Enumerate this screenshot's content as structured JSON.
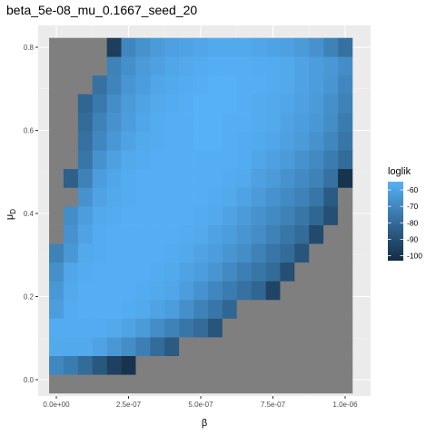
{
  "chart_data": {
    "type": "heatmap",
    "title": "beta_5e-08_mu_0.1667_seed_20",
    "xlabel": "β",
    "ylabel": "μ_D",
    "ylabel_main": "μ",
    "ylabel_sub": "D",
    "x_ticks": [
      {
        "value": 0,
        "label": "0.0e+00"
      },
      {
        "value": 2.5e-07,
        "label": "2.5e-07"
      },
      {
        "value": 5e-07,
        "label": "5.0e-07"
      },
      {
        "value": 7.5e-07,
        "label": "7.5e-07"
      },
      {
        "value": 1e-06,
        "label": "1.0e-06"
      }
    ],
    "y_ticks": [
      {
        "value": 0.0,
        "label": "0.0"
      },
      {
        "value": 0.2,
        "label": "0.2"
      },
      {
        "value": 0.4,
        "label": "0.4"
      },
      {
        "value": 0.6,
        "label": "0.6"
      },
      {
        "value": 0.8,
        "label": "0.8"
      }
    ],
    "x_step": 5e-08,
    "y_step": 0.045,
    "x_values": [
      0,
      5e-08,
      1e-07,
      1.5e-07,
      2e-07,
      2.5e-07,
      3e-07,
      3.5e-07,
      4e-07,
      4.5e-07,
      5e-07,
      5.5e-07,
      6e-07,
      6.5e-07,
      7e-07,
      7.5e-07,
      8e-07,
      8.5e-07,
      9e-07,
      9.5e-07,
      1e-06
    ],
    "y_values": [
      -0.01,
      0.035,
      0.08,
      0.125,
      0.17,
      0.215,
      0.26,
      0.305,
      0.35,
      0.395,
      0.44,
      0.485,
      0.53,
      0.575,
      0.62,
      0.665,
      0.71,
      0.755,
      0.8
    ],
    "legend": {
      "title": "loglik",
      "breaks": [
        {
          "value": -60,
          "label": "-60"
        },
        {
          "value": -70,
          "label": "-70"
        },
        {
          "value": -80,
          "label": "-80"
        },
        {
          "value": -90,
          "label": "-90"
        },
        {
          "value": -100,
          "label": "-100"
        }
      ],
      "min": -103,
      "max": -55,
      "low_color": "#132b43",
      "high_color": "#56b1f7",
      "na_color": "#7f7f7f",
      "position": "right"
    },
    "panel_background": "#ebebeb",
    "grid": true,
    "rows_note": "rows ordered from bottom (y=-0.01) to top (y=0.80); null = no value (grey)",
    "z": [
      [
        null,
        null,
        null,
        null,
        null,
        null,
        null,
        null,
        null,
        null,
        null,
        null,
        null,
        null,
        null,
        null,
        null,
        null,
        null,
        null,
        null
      ],
      [
        -70,
        -74,
        -80,
        -87,
        -95,
        -100,
        null,
        null,
        null,
        null,
        null,
        null,
        null,
        null,
        null,
        null,
        null,
        null,
        null,
        null,
        null
      ],
      [
        -58,
        -58,
        -58,
        -60,
        -64,
        -68,
        -73,
        -80,
        -86,
        null,
        null,
        null,
        null,
        null,
        null,
        null,
        null,
        null,
        null,
        null,
        null
      ],
      [
        -57,
        -57,
        -57,
        -57,
        -58,
        -60,
        -63,
        -68,
        -72,
        -76,
        -80,
        -88,
        null,
        null,
        null,
        null,
        null,
        null,
        null,
        null,
        null
      ],
      [
        -62,
        -57,
        -56,
        -56,
        -56,
        -57,
        -58,
        -60,
        -62,
        -67,
        -72,
        -76,
        -82,
        null,
        null,
        null,
        null,
        null,
        null,
        null,
        null
      ],
      [
        -64,
        -58,
        -56,
        -56,
        -56,
        -56,
        -57,
        -58,
        -59,
        -62,
        -66,
        -70,
        -74,
        -78,
        -82,
        -94,
        null,
        null,
        null,
        null,
        null
      ],
      [
        -67,
        -59,
        -57,
        -56,
        -56,
        -56,
        -56,
        -57,
        -58,
        -60,
        -62,
        -65,
        -69,
        -73,
        -76,
        -80,
        -90,
        null,
        null,
        null,
        null
      ],
      [
        -72,
        -64,
        -58,
        -57,
        -56,
        -56,
        -56,
        -56,
        -57,
        -58,
        -60,
        -62,
        -65,
        -68,
        -72,
        -76,
        -80,
        -88,
        null,
        null,
        null
      ],
      [
        null,
        -66,
        -60,
        -57,
        -56,
        -56,
        -56,
        -56,
        -56,
        -57,
        -58,
        -60,
        -62,
        -65,
        -68,
        -72,
        -76,
        -80,
        -92,
        null,
        null
      ],
      [
        null,
        -68,
        -62,
        -58,
        -57,
        -56,
        -56,
        -56,
        -56,
        -56,
        -57,
        -58,
        -60,
        -63,
        -66,
        -69,
        -72,
        -76,
        -82,
        -90,
        null
      ],
      [
        null,
        null,
        -66,
        -60,
        -58,
        -57,
        -56,
        -56,
        -56,
        -56,
        -56,
        -57,
        -58,
        -60,
        -63,
        -66,
        -69,
        -72,
        -76,
        -86,
        null
      ],
      [
        null,
        -84,
        -72,
        -62,
        -59,
        -57,
        -56,
        -56,
        -56,
        -56,
        -56,
        -56,
        -57,
        -58,
        -61,
        -63,
        -66,
        -69,
        -72,
        -78,
        -100
      ],
      [
        null,
        null,
        -76,
        -66,
        -61,
        -58,
        -57,
        -56,
        -56,
        -56,
        -56,
        -56,
        -56,
        -57,
        -59,
        -61,
        -63,
        -66,
        -69,
        -74,
        -80
      ],
      [
        null,
        null,
        -78,
        -70,
        -64,
        -60,
        -58,
        -57,
        -56,
        -56,
        -55,
        -55,
        -56,
        -57,
        -58,
        -59,
        -61,
        -63,
        -66,
        -70,
        -76
      ],
      [
        null,
        null,
        -80,
        -72,
        -66,
        -62,
        -59,
        -57,
        -56,
        -56,
        -55,
        -55,
        -56,
        -56,
        -57,
        -58,
        -60,
        -62,
        -64,
        -68,
        -74
      ],
      [
        null,
        null,
        -82,
        -75,
        -68,
        -63,
        -60,
        -58,
        -57,
        -56,
        -55,
        -55,
        -55,
        -56,
        -57,
        -58,
        -59,
        -61,
        -63,
        -67,
        -72
      ],
      [
        null,
        null,
        null,
        -78,
        -71,
        -65,
        -62,
        -59,
        -58,
        -57,
        -56,
        -55,
        -55,
        -56,
        -56,
        -57,
        -58,
        -60,
        -62,
        -65,
        -70
      ],
      [
        null,
        null,
        null,
        null,
        -72,
        -67,
        -63,
        -61,
        -59,
        -58,
        -57,
        -56,
        -56,
        -56,
        -57,
        -57,
        -58,
        -60,
        -62,
        -64,
        -68
      ],
      [
        null,
        null,
        null,
        null,
        -96,
        -70,
        -66,
        -63,
        -61,
        -60,
        -59,
        -58,
        -58,
        -58,
        -59,
        -60,
        -61,
        -63,
        -66,
        -72,
        -78
      ]
    ]
  }
}
